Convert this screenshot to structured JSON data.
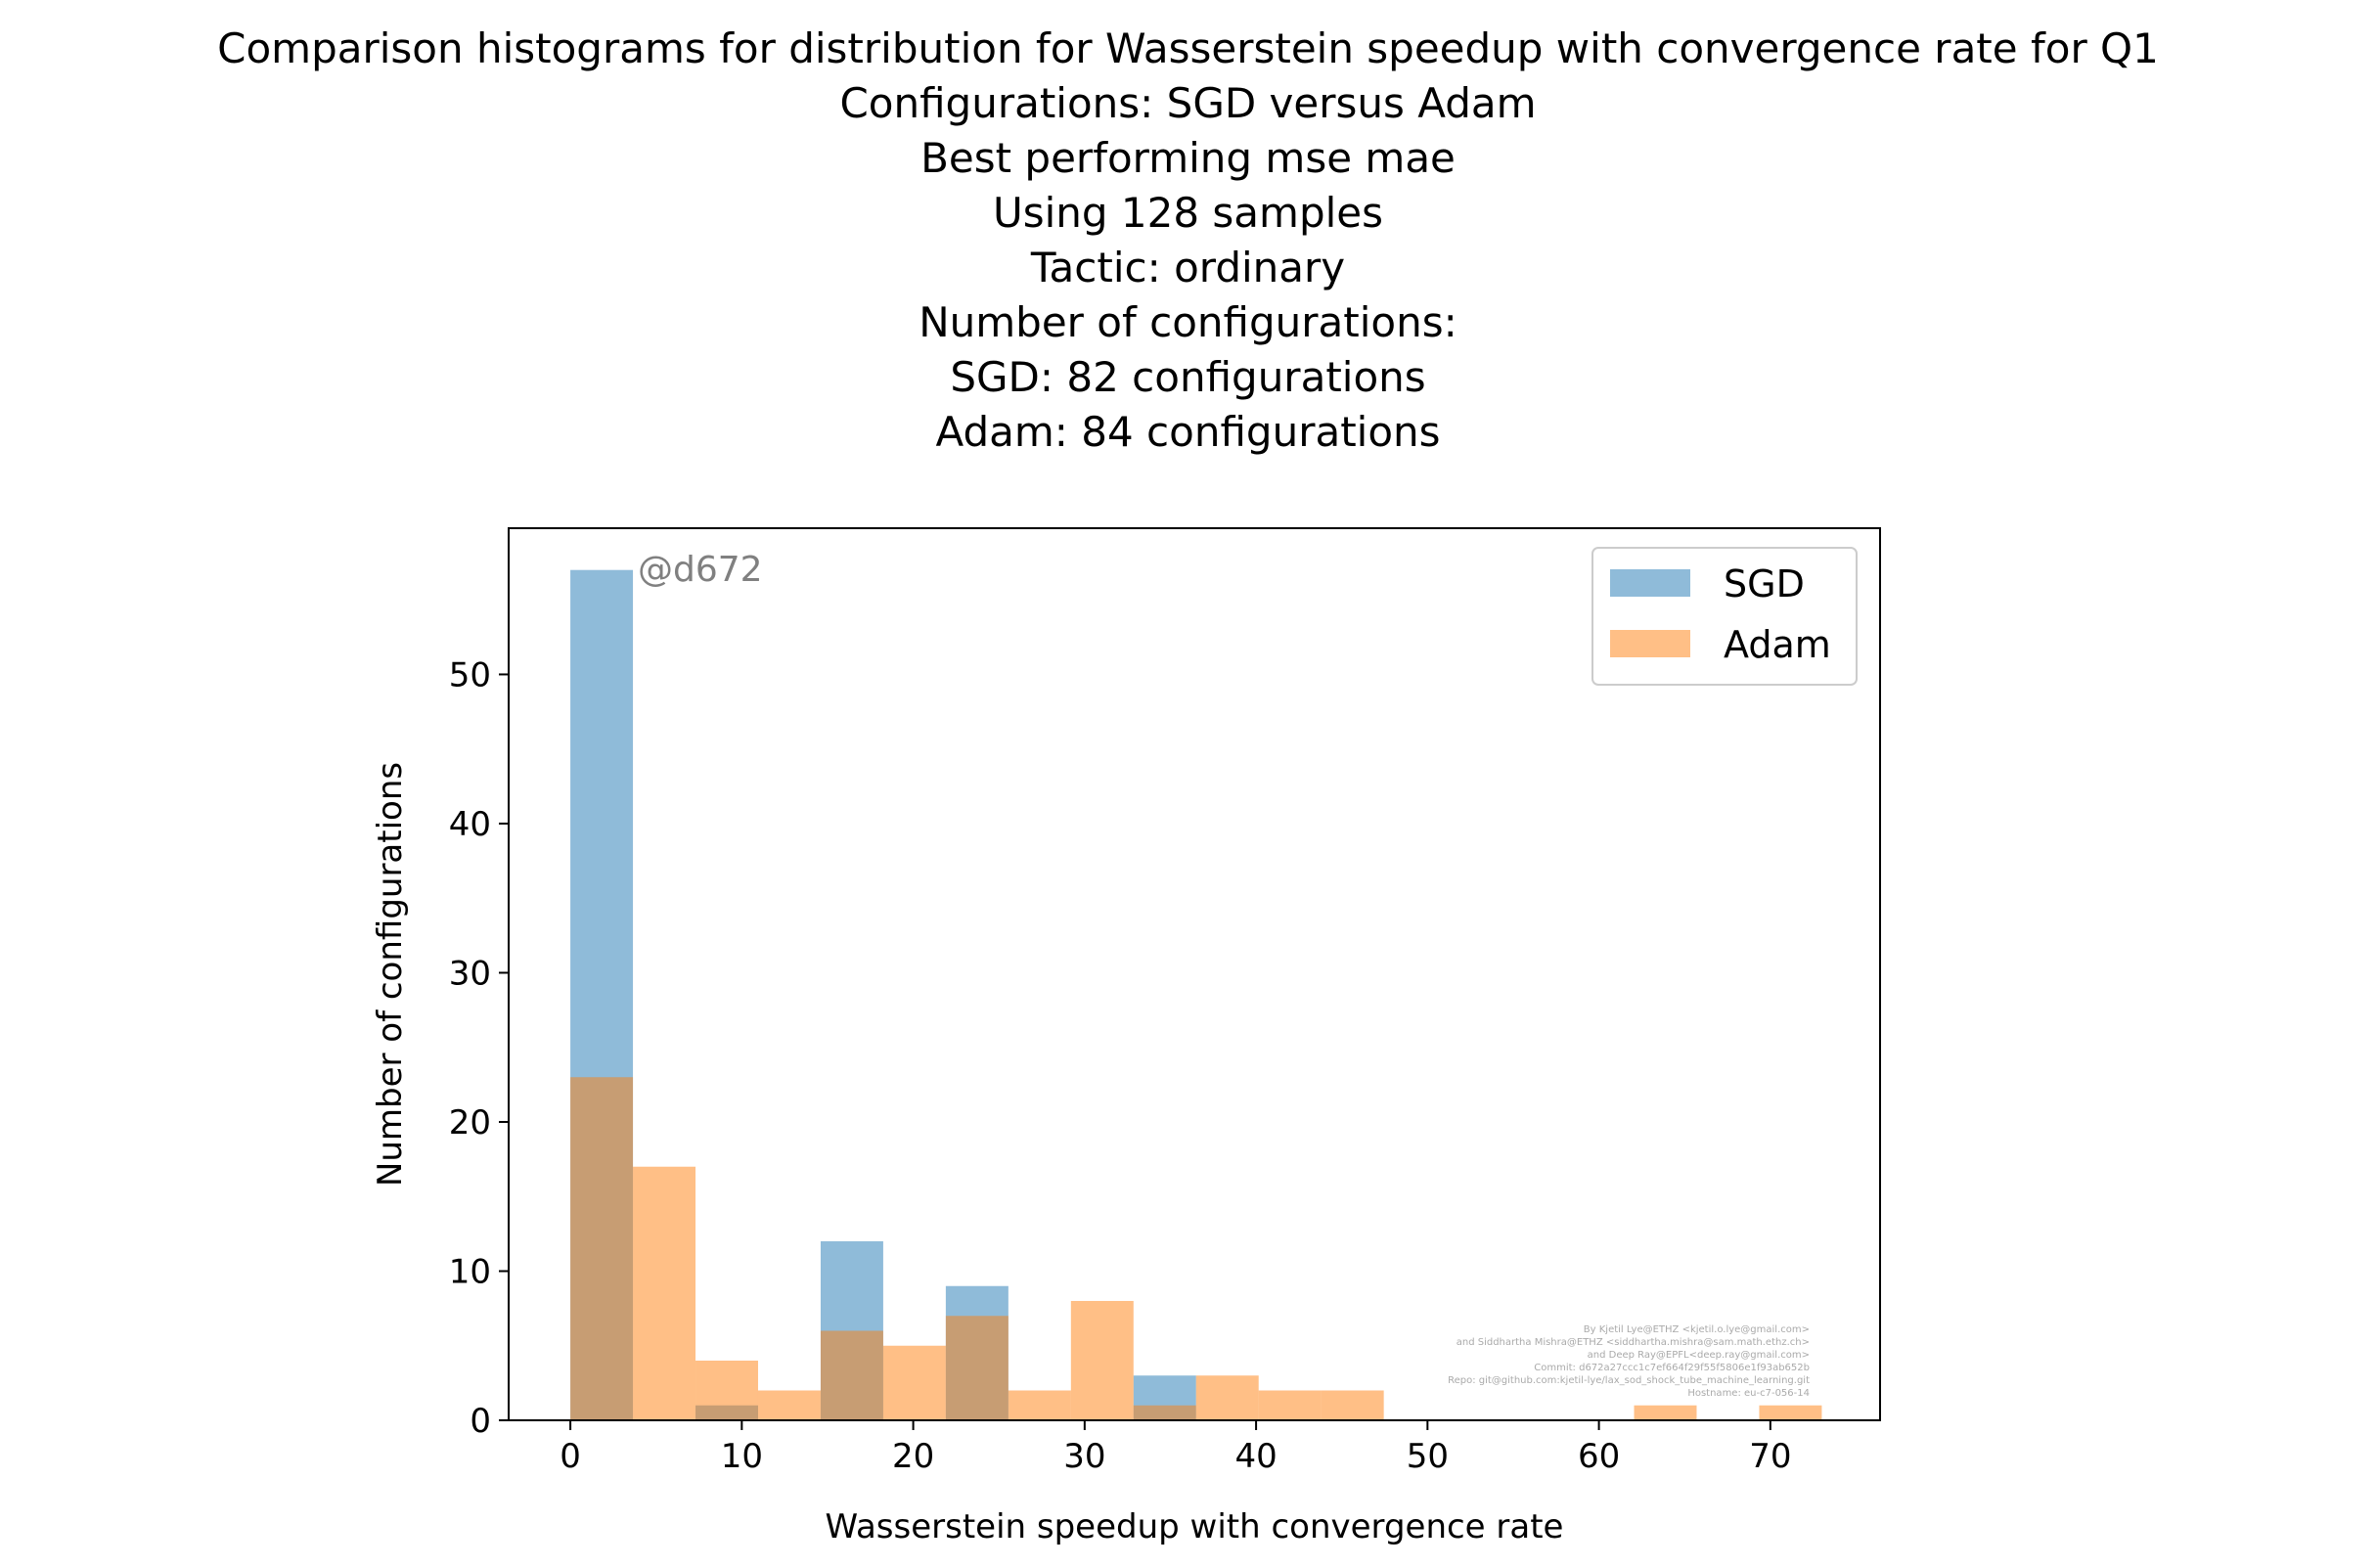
{
  "chart_data": {
    "type": "bar",
    "title_lines": [
      "Comparison histograms for distribution for Wasserstein speedup with convergence rate for Q1",
      "Configurations: SGD versus Adam",
      "Best performing mse mae",
      "Using 128 samples",
      "Tactic: ordinary",
      "Number of configurations:",
      "SGD: 82 configurations",
      "Adam: 84 configurations"
    ],
    "xlabel": "Wasserstein speedup with convergence rate",
    "ylabel": "Number of configurations",
    "xlim": [
      -3.6,
      76.4
    ],
    "ylim": [
      0,
      59.8
    ],
    "xticks": [
      0,
      10,
      20,
      30,
      40,
      50,
      60,
      70
    ],
    "yticks": [
      0,
      10,
      20,
      30,
      40,
      50
    ],
    "legend_position": "top-right",
    "annotation": "@d672",
    "credits": [
      "By Kjetil Lye@ETHZ <kjetil.o.lye@gmail.com>",
      "and Siddhartha Mishra@ETHZ <siddhartha.mishra@sam.math.ethz.ch>",
      "and Deep Ray@EPFL<deep.ray@gmail.com>",
      "Commit: d672a27ccc1c7ef664f29f55f5806e1f93ab652b",
      "Repo: git@github.com:kjetil-lye/lax_sod_shock_tube_machine_learning.git",
      "Hostname: eu-c7-056-14"
    ],
    "series": [
      {
        "name": "SGD",
        "color": "#1f77b4",
        "opacity": 0.5,
        "bin_edges": [
          0,
          3.65,
          7.3,
          10.95,
          14.6,
          18.25,
          21.9,
          25.55,
          29.2,
          32.85,
          36.5
        ],
        "counts": [
          57,
          0,
          1,
          0,
          12,
          0,
          9,
          0,
          0,
          3
        ]
      },
      {
        "name": "Adam",
        "color": "#ff7f0e",
        "opacity": 0.5,
        "bin_edges": [
          0,
          3.65,
          7.3,
          10.95,
          14.6,
          18.25,
          21.9,
          25.55,
          29.2,
          32.85,
          36.5,
          40.15,
          43.8,
          47.45,
          51.1,
          54.75,
          58.4,
          62.05,
          65.7,
          69.35,
          73.0
        ],
        "counts": [
          23,
          17,
          4,
          2,
          6,
          5,
          7,
          2,
          8,
          1,
          3,
          2,
          2,
          0,
          0,
          0,
          0,
          1,
          0,
          1
        ]
      }
    ]
  }
}
